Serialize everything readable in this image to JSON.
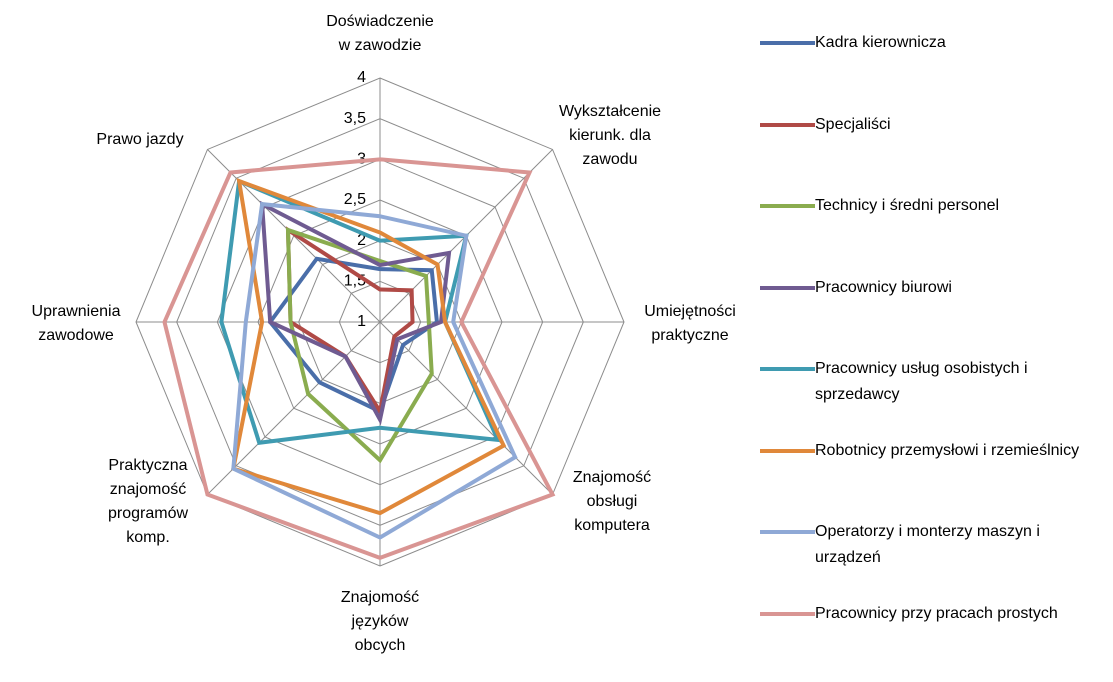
{
  "chart_data": {
    "type": "radar",
    "categories": [
      [
        "Doświadczenie",
        "w zawodzie"
      ],
      [
        "Wykształcenie",
        "kierunk. dla",
        "zawodu"
      ],
      [
        "Umiejętności",
        "praktyczne"
      ],
      [
        "Znajomość",
        "obsługi",
        "komputera"
      ],
      [
        "Znajomość",
        "języków",
        "obcych"
      ],
      [
        "Praktyczna",
        "znajomość",
        "programów",
        "komp."
      ],
      [
        "Uprawnienia",
        "zawodowe"
      ],
      [
        "Prawo jazdy"
      ]
    ],
    "rlim": [
      1,
      4
    ],
    "rticks": [
      1,
      {
        "value": 1.5,
        "label": "1,5"
      },
      2,
      {
        "value": 2.5,
        "label": "2,5"
      },
      3,
      {
        "value": 3.5,
        "label": "3,5"
      },
      4
    ],
    "grid": true,
    "legend": "right",
    "series": [
      {
        "name": "Kadra kierownicza",
        "color": "#4a6ea9",
        "values": [
          1.65,
          1.9,
          1.7,
          1.4,
          2.1,
          2.05,
          2.35,
          2.1
        ]
      },
      {
        "name": "Specjaliści",
        "color": "#b04a46",
        "values": [
          1.4,
          1.55,
          1.4,
          1.25,
          2.1,
          1.6,
          2.1,
          2.6
        ]
      },
      {
        "name": "Technicy i średni personel",
        "color": "#8aac4f",
        "values": [
          1.75,
          1.8,
          1.6,
          1.9,
          2.7,
          2.25,
          2.1,
          2.6
        ]
      },
      {
        "name": "Pracownicy biurowi",
        "color": "#6f5b91",
        "values": [
          1.7,
          2.2,
          1.75,
          1.3,
          2.2,
          1.6,
          2.35,
          3.05
        ]
      },
      {
        "name": "Pracownicy usług osobistych i sprzedawcy",
        "color": "#3f9bb1",
        "values": [
          2.0,
          2.5,
          1.8,
          3.05,
          2.3,
          3.1,
          2.95,
          3.45
        ]
      },
      {
        "name": "Robotnicy przemysłowi i rzemieślnicy",
        "color": "#e0883a",
        "values": [
          2.1,
          2.0,
          1.8,
          3.15,
          3.35,
          3.55,
          2.45,
          3.45
        ]
      },
      {
        "name": "Operatorzy i monterzy maszyn i urządzeń",
        "color": "#8fa9d6",
        "values": [
          2.3,
          2.5,
          1.9,
          3.35,
          3.65,
          3.55,
          2.65,
          3.05
        ]
      },
      {
        "name": "Pracownicy przy pracach prostych",
        "color": "#d99593",
        "values": [
          3.0,
          3.6,
          2.0,
          4.0,
          3.9,
          4.0,
          3.65,
          3.6
        ]
      }
    ]
  }
}
